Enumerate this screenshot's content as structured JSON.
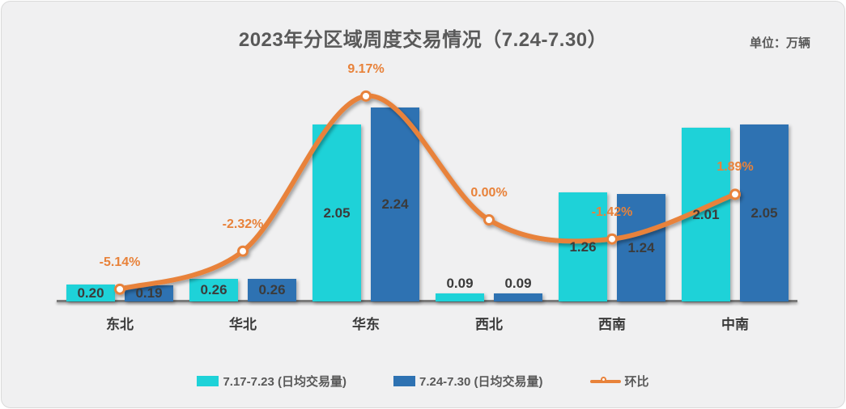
{
  "header": {
    "title": "2023年分区域周度交易情况（7.24-7.30）",
    "unit_label": "单位：万辆"
  },
  "chart_data": {
    "type": "bar",
    "subtype": "grouped-bar-with-line-combo",
    "title": "2023年分区域周度交易情况（7.24-7.30）",
    "unit": "万辆",
    "categories": [
      "东北",
      "华北",
      "华东",
      "西北",
      "西南",
      "中南"
    ],
    "series": [
      {
        "name": "7.17-7.23 (日均交易量)",
        "type": "bar",
        "color": "#1ED2D8",
        "values": [
          0.2,
          0.26,
          2.05,
          0.09,
          1.26,
          2.01
        ],
        "labels": [
          "0.20",
          "0.26",
          "2.05",
          "0.09",
          "1.26",
          "2.01"
        ]
      },
      {
        "name": "7.24-7.30 (日均交易量)",
        "type": "bar",
        "color": "#2E72B2",
        "values": [
          0.19,
          0.26,
          2.24,
          0.09,
          1.24,
          2.05
        ],
        "labels": [
          "0.19",
          "0.26",
          "2.24",
          "0.09",
          "1.24",
          "2.05"
        ]
      },
      {
        "name": "环比",
        "type": "line",
        "axis": "secondary",
        "unit": "%",
        "color": "#E8823A",
        "values": [
          -5.14,
          -2.32,
          9.17,
          0.0,
          -1.42,
          1.89
        ],
        "labels": [
          "-5.14%",
          "-2.32%",
          "9.17%",
          "0.00%",
          "-1.42%",
          "1.89%"
        ]
      }
    ],
    "axes": {
      "x": {
        "labels": [
          "东北",
          "华北",
          "华东",
          "西北",
          "西南",
          "中南"
        ],
        "visible_line": true
      },
      "primary_y": {
        "visible": false,
        "implied_range": [
          0,
          2.4
        ]
      },
      "secondary_y": {
        "visible": false,
        "implied_range_pct": [
          -7,
          10
        ]
      }
    },
    "gridlines": false,
    "legend_position": "bottom",
    "data_labels": "shown"
  },
  "colors": {
    "card_background": "#F0F0F1",
    "bar_series_1": "#1ED2D8",
    "bar_series_2": "#2E72B2",
    "line_series": "#E8823A",
    "value_label_text": "#3B3B3B",
    "title_text": "#595959",
    "axis_line": "#7A7A7A"
  }
}
